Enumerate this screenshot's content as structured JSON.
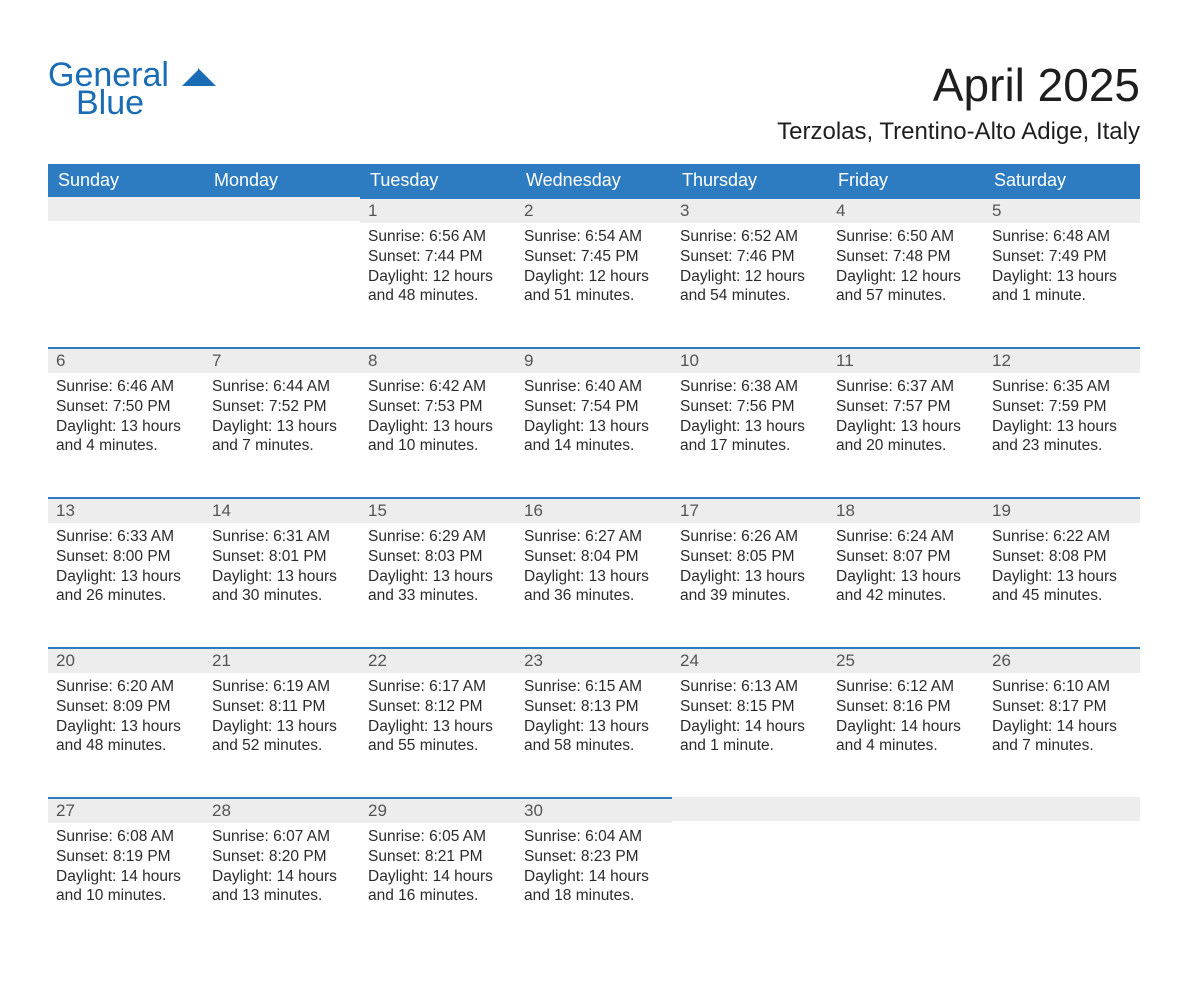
{
  "brand": {
    "word1": "General",
    "word2": "Blue",
    "color": "#1a6db5"
  },
  "title": "April 2025",
  "location": "Terzolas, Trentino-Alto Adige, Italy",
  "theme": {
    "header_bg": "#2d7cc2",
    "header_text": "#ffffff",
    "daynum_bg": "#ededed",
    "daynum_border": "#2d7cc2",
    "body_text": "#2a2a2a",
    "page_bg": "#ffffff"
  },
  "weekdays": [
    "Sunday",
    "Monday",
    "Tuesday",
    "Wednesday",
    "Thursday",
    "Friday",
    "Saturday"
  ],
  "weeks": [
    [
      null,
      null,
      {
        "n": "1",
        "sr": "Sunrise: 6:56 AM",
        "ss": "Sunset: 7:44 PM",
        "d1": "Daylight: 12 hours",
        "d2": "and 48 minutes."
      },
      {
        "n": "2",
        "sr": "Sunrise: 6:54 AM",
        "ss": "Sunset: 7:45 PM",
        "d1": "Daylight: 12 hours",
        "d2": "and 51 minutes."
      },
      {
        "n": "3",
        "sr": "Sunrise: 6:52 AM",
        "ss": "Sunset: 7:46 PM",
        "d1": "Daylight: 12 hours",
        "d2": "and 54 minutes."
      },
      {
        "n": "4",
        "sr": "Sunrise: 6:50 AM",
        "ss": "Sunset: 7:48 PM",
        "d1": "Daylight: 12 hours",
        "d2": "and 57 minutes."
      },
      {
        "n": "5",
        "sr": "Sunrise: 6:48 AM",
        "ss": "Sunset: 7:49 PM",
        "d1": "Daylight: 13 hours",
        "d2": "and 1 minute."
      }
    ],
    [
      {
        "n": "6",
        "sr": "Sunrise: 6:46 AM",
        "ss": "Sunset: 7:50 PM",
        "d1": "Daylight: 13 hours",
        "d2": "and 4 minutes."
      },
      {
        "n": "7",
        "sr": "Sunrise: 6:44 AM",
        "ss": "Sunset: 7:52 PM",
        "d1": "Daylight: 13 hours",
        "d2": "and 7 minutes."
      },
      {
        "n": "8",
        "sr": "Sunrise: 6:42 AM",
        "ss": "Sunset: 7:53 PM",
        "d1": "Daylight: 13 hours",
        "d2": "and 10 minutes."
      },
      {
        "n": "9",
        "sr": "Sunrise: 6:40 AM",
        "ss": "Sunset: 7:54 PM",
        "d1": "Daylight: 13 hours",
        "d2": "and 14 minutes."
      },
      {
        "n": "10",
        "sr": "Sunrise: 6:38 AM",
        "ss": "Sunset: 7:56 PM",
        "d1": "Daylight: 13 hours",
        "d2": "and 17 minutes."
      },
      {
        "n": "11",
        "sr": "Sunrise: 6:37 AM",
        "ss": "Sunset: 7:57 PM",
        "d1": "Daylight: 13 hours",
        "d2": "and 20 minutes."
      },
      {
        "n": "12",
        "sr": "Sunrise: 6:35 AM",
        "ss": "Sunset: 7:59 PM",
        "d1": "Daylight: 13 hours",
        "d2": "and 23 minutes."
      }
    ],
    [
      {
        "n": "13",
        "sr": "Sunrise: 6:33 AM",
        "ss": "Sunset: 8:00 PM",
        "d1": "Daylight: 13 hours",
        "d2": "and 26 minutes."
      },
      {
        "n": "14",
        "sr": "Sunrise: 6:31 AM",
        "ss": "Sunset: 8:01 PM",
        "d1": "Daylight: 13 hours",
        "d2": "and 30 minutes."
      },
      {
        "n": "15",
        "sr": "Sunrise: 6:29 AM",
        "ss": "Sunset: 8:03 PM",
        "d1": "Daylight: 13 hours",
        "d2": "and 33 minutes."
      },
      {
        "n": "16",
        "sr": "Sunrise: 6:27 AM",
        "ss": "Sunset: 8:04 PM",
        "d1": "Daylight: 13 hours",
        "d2": "and 36 minutes."
      },
      {
        "n": "17",
        "sr": "Sunrise: 6:26 AM",
        "ss": "Sunset: 8:05 PM",
        "d1": "Daylight: 13 hours",
        "d2": "and 39 minutes."
      },
      {
        "n": "18",
        "sr": "Sunrise: 6:24 AM",
        "ss": "Sunset: 8:07 PM",
        "d1": "Daylight: 13 hours",
        "d2": "and 42 minutes."
      },
      {
        "n": "19",
        "sr": "Sunrise: 6:22 AM",
        "ss": "Sunset: 8:08 PM",
        "d1": "Daylight: 13 hours",
        "d2": "and 45 minutes."
      }
    ],
    [
      {
        "n": "20",
        "sr": "Sunrise: 6:20 AM",
        "ss": "Sunset: 8:09 PM",
        "d1": "Daylight: 13 hours",
        "d2": "and 48 minutes."
      },
      {
        "n": "21",
        "sr": "Sunrise: 6:19 AM",
        "ss": "Sunset: 8:11 PM",
        "d1": "Daylight: 13 hours",
        "d2": "and 52 minutes."
      },
      {
        "n": "22",
        "sr": "Sunrise: 6:17 AM",
        "ss": "Sunset: 8:12 PM",
        "d1": "Daylight: 13 hours",
        "d2": "and 55 minutes."
      },
      {
        "n": "23",
        "sr": "Sunrise: 6:15 AM",
        "ss": "Sunset: 8:13 PM",
        "d1": "Daylight: 13 hours",
        "d2": "and 58 minutes."
      },
      {
        "n": "24",
        "sr": "Sunrise: 6:13 AM",
        "ss": "Sunset: 8:15 PM",
        "d1": "Daylight: 14 hours",
        "d2": "and 1 minute."
      },
      {
        "n": "25",
        "sr": "Sunrise: 6:12 AM",
        "ss": "Sunset: 8:16 PM",
        "d1": "Daylight: 14 hours",
        "d2": "and 4 minutes."
      },
      {
        "n": "26",
        "sr": "Sunrise: 6:10 AM",
        "ss": "Sunset: 8:17 PM",
        "d1": "Daylight: 14 hours",
        "d2": "and 7 minutes."
      }
    ],
    [
      {
        "n": "27",
        "sr": "Sunrise: 6:08 AM",
        "ss": "Sunset: 8:19 PM",
        "d1": "Daylight: 14 hours",
        "d2": "and 10 minutes."
      },
      {
        "n": "28",
        "sr": "Sunrise: 6:07 AM",
        "ss": "Sunset: 8:20 PM",
        "d1": "Daylight: 14 hours",
        "d2": "and 13 minutes."
      },
      {
        "n": "29",
        "sr": "Sunrise: 6:05 AM",
        "ss": "Sunset: 8:21 PM",
        "d1": "Daylight: 14 hours",
        "d2": "and 16 minutes."
      },
      {
        "n": "30",
        "sr": "Sunrise: 6:04 AM",
        "ss": "Sunset: 8:23 PM",
        "d1": "Daylight: 14 hours",
        "d2": "and 18 minutes."
      },
      null,
      null,
      null
    ]
  ]
}
